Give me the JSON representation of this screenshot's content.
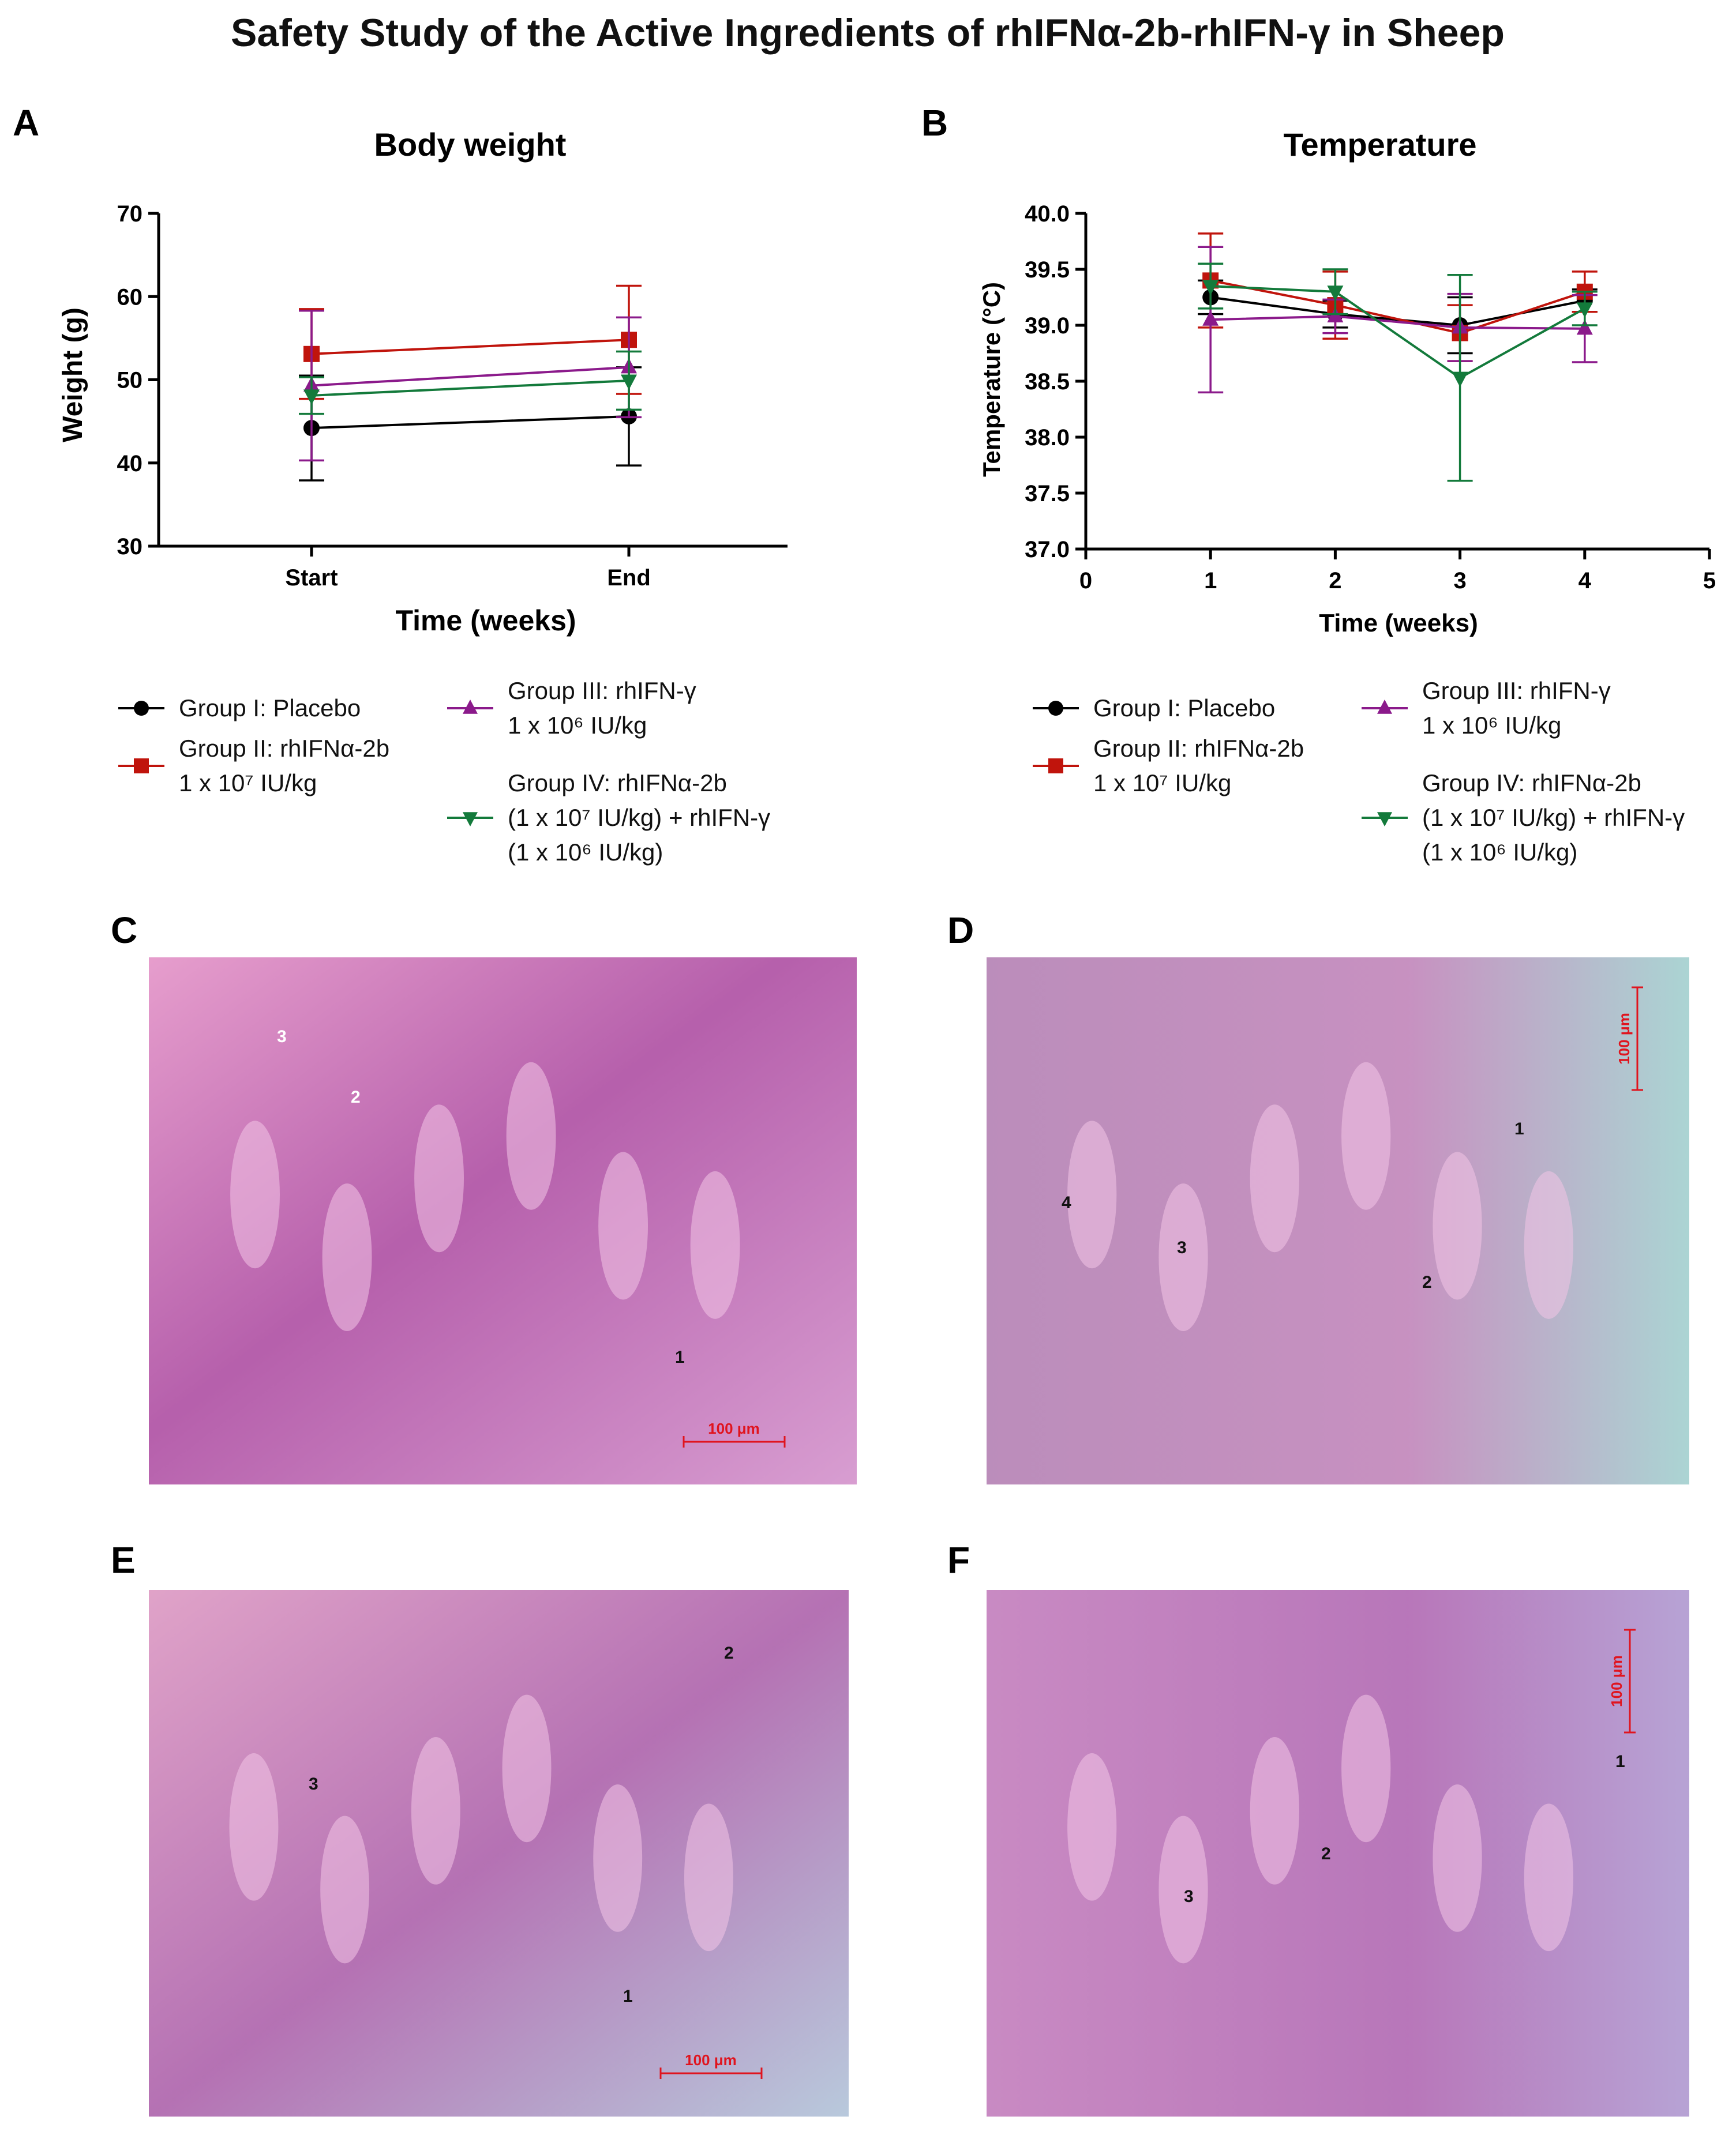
{
  "figure": {
    "title": "Safety Study of the Active Ingredients of rhIFNα-2b-rhIFN-γ in Sheep",
    "panel_letters": [
      "A",
      "B",
      "C",
      "D",
      "E",
      "F"
    ]
  },
  "legend": [
    {
      "line1": "Group I: Placebo",
      "line2": "",
      "line3": "",
      "color": "#000000",
      "marker": "circle"
    },
    {
      "line1": "Group II: rhIFNα-2b",
      "line2": "1 x 10⁷ IU/kg",
      "line3": "",
      "color": "#c0140c",
      "marker": "square"
    },
    {
      "line1": "Group III: rhIFN-γ",
      "line2": "1 x 10⁶ IU/kg",
      "line3": "",
      "color": "#8b1a8b",
      "marker": "triangle-up"
    },
    {
      "line1": "Group  IV: rhIFNα-2b",
      "line2": "(1 x 10⁷ IU/kg) +  rhIFN-γ",
      "line3": "(1 x 10⁶ IU/kg)",
      "color": "#137a3b",
      "marker": "triangle-down"
    }
  ],
  "chart_data": [
    {
      "panel": "A",
      "type": "line",
      "title": "Body weight",
      "xlabel": "Time (weeks)",
      "ylabel": "Weight (g)",
      "categories": [
        "Start",
        "End"
      ],
      "ylim": [
        30,
        70
      ],
      "yticks": [
        "30",
        "40",
        "50",
        "60",
        "70"
      ],
      "series": [
        {
          "name": "Group I: Placebo",
          "values": [
            44.2,
            45.6
          ],
          "err": [
            6.3,
            5.9
          ]
        },
        {
          "name": "Group II: rhIFNα-2b 1 x 10⁷ IU/kg",
          "values": [
            53.1,
            54.8
          ],
          "err": [
            5.4,
            6.5
          ]
        },
        {
          "name": "Group III: rhIFN-γ 1 x 10⁶ IU/kg",
          "values": [
            49.3,
            51.5
          ],
          "err": [
            9.0,
            6.0
          ]
        },
        {
          "name": "Group IV: rhIFNα-2b (1 x 10⁷ IU/kg) + rhIFN-γ (1 x 10⁶ IU/kg)",
          "values": [
            48.1,
            49.9
          ],
          "err": [
            2.2,
            3.5
          ]
        }
      ]
    },
    {
      "panel": "B",
      "type": "line",
      "title": "Temperature",
      "xlabel": "Time (weeks)",
      "ylabel": "Temperature  (°C)",
      "xlim": [
        0,
        5
      ],
      "xticks": [
        "0",
        "1",
        "2",
        "3",
        "4",
        "5"
      ],
      "ylim": [
        37.0,
        40.0
      ],
      "yticks": [
        "37.0",
        "37.5",
        "38.0",
        "38.5",
        "39.0",
        "39.5",
        "40.0"
      ],
      "x": [
        1,
        2,
        3,
        4
      ],
      "series": [
        {
          "name": "Group I: Placebo",
          "values": [
            39.25,
            39.1,
            39.0,
            39.22
          ],
          "err": [
            0.15,
            0.12,
            0.25,
            0.1
          ]
        },
        {
          "name": "Group II: rhIFNα-2b 1 x 10⁷ IU/kg",
          "values": [
            39.4,
            39.18,
            38.93,
            39.3
          ],
          "err": [
            0.42,
            0.3,
            0.25,
            0.18
          ]
        },
        {
          "name": "Group III: rhIFN-γ 1 x 10⁶ IU/kg",
          "values": [
            39.05,
            39.08,
            38.98,
            38.97
          ],
          "err": [
            0.65,
            0.15,
            0.3,
            0.3
          ]
        },
        {
          "name": "Group IV: rhIFNα-2b (1 x 10⁷ IU/kg) + rhIFN-γ (1 x 10⁶ IU/kg)",
          "values": [
            39.35,
            39.3,
            38.53,
            39.15
          ],
          "err": [
            0.2,
            0.2,
            0.92,
            0.15
          ]
        }
      ]
    }
  ],
  "micrographs": [
    {
      "panel": "C",
      "scale": "100 μm",
      "labels": [
        "1",
        "2",
        "3"
      ],
      "bg": "#d77fc0"
    },
    {
      "panel": "D",
      "scale": "100 μm",
      "labels": [
        "1",
        "2",
        "3",
        "4"
      ],
      "bg": "#c79dc4"
    },
    {
      "panel": "E",
      "scale": "100 μm",
      "labels": [
        "1",
        "2",
        "3"
      ],
      "bg": "#cf90c5"
    },
    {
      "panel": "F",
      "scale": "100 μm",
      "labels": [
        "1",
        "2",
        "3"
      ],
      "bg": "#c785c2"
    }
  ]
}
